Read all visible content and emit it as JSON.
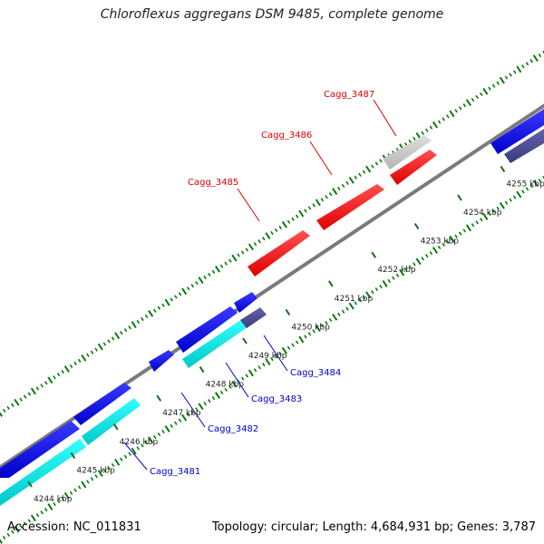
{
  "title": "Chloroflexus aggregans DSM 9485, complete genome",
  "footer": {
    "accession": "Accession: NC_011831",
    "summary": "Topology: circular; Length: 4,684,931 bp; Genes: 3,787"
  },
  "axis_ticks": [
    {
      "kbp": 4244,
      "label": "4244 kbp"
    },
    {
      "kbp": 4245,
      "label": "4245 kbp"
    },
    {
      "kbp": 4246,
      "label": "4246 kbp"
    },
    {
      "kbp": 4247,
      "label": "4247 kbp"
    },
    {
      "kbp": 4248,
      "label": "4248 kbp"
    },
    {
      "kbp": 4249,
      "label": "4249 kbp"
    },
    {
      "kbp": 4250,
      "label": "4250 kbp"
    },
    {
      "kbp": 4251,
      "label": "4251 kbp"
    },
    {
      "kbp": 4252,
      "label": "4252 kbp"
    },
    {
      "kbp": 4253,
      "label": "4253 kbp"
    },
    {
      "kbp": 4254,
      "label": "4254 kbp"
    },
    {
      "kbp": 4255,
      "label": "4255 kbp"
    }
  ],
  "gene_labels": {
    "forward": [
      "Cagg_3485",
      "Cagg_3486",
      "Cagg_3487"
    ],
    "reverse": [
      "Cagg_3481",
      "Cagg_3482",
      "Cagg_3483",
      "Cagg_3484"
    ]
  },
  "colors": {
    "highlight_gene": "#ee0000",
    "gray_gene": "#c8c8c8",
    "cds_blue": "#0000dd",
    "cds_cyan": "#00cccc",
    "cds_slate": "#4a4a8c",
    "backbone": "#808080",
    "gc_ticks": "#0a7a0a",
    "label_red": "#e00000",
    "label_blue": "#0000cc"
  }
}
